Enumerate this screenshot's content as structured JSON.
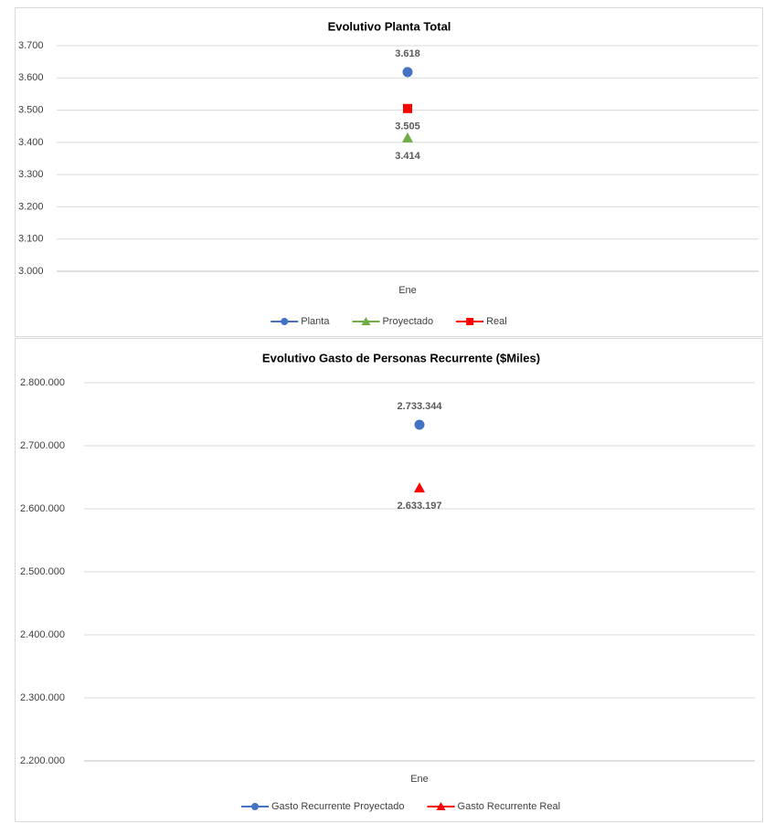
{
  "chart_data": [
    {
      "type": "line",
      "title": "Evolutivo Planta Total",
      "categories": [
        "Ene"
      ],
      "ylim": [
        3000,
        3700
      ],
      "yticks": [
        {
          "value": 3000,
          "label": "3.000"
        },
        {
          "value": 3100,
          "label": "3.100"
        },
        {
          "value": 3200,
          "label": "3.200"
        },
        {
          "value": 3300,
          "label": "3.300"
        },
        {
          "value": 3400,
          "label": "3.400"
        },
        {
          "value": 3500,
          "label": "3.500"
        },
        {
          "value": 3600,
          "label": "3.600"
        },
        {
          "value": 3700,
          "label": "3.700"
        }
      ],
      "grid": true,
      "legend": "bottom",
      "series": [
        {
          "name": "Planta",
          "color": "#4472c4",
          "marker": "circle",
          "label_position": "above",
          "values": [
            3618
          ],
          "value_labels": [
            "3.618"
          ]
        },
        {
          "name": "Proyectado",
          "color": "#70ad47",
          "marker": "triangle",
          "label_position": "below",
          "values": [
            3414
          ],
          "value_labels": [
            "3.414"
          ]
        },
        {
          "name": "Real",
          "color": "#ff0000",
          "marker": "square",
          "label_position": "below",
          "values": [
            3505
          ],
          "value_labels": [
            "3.505"
          ]
        }
      ]
    },
    {
      "type": "line",
      "title": "Evolutivo Gasto de Personas Recurrente ($Miles)",
      "categories": [
        "Ene"
      ],
      "ylim": [
        2200000,
        2800000
      ],
      "yticks": [
        {
          "value": 2200000,
          "label": "2.200.000"
        },
        {
          "value": 2300000,
          "label": "2.300.000"
        },
        {
          "value": 2400000,
          "label": "2.400.000"
        },
        {
          "value": 2500000,
          "label": "2.500.000"
        },
        {
          "value": 2600000,
          "label": "2.600.000"
        },
        {
          "value": 2700000,
          "label": "2.700.000"
        },
        {
          "value": 2800000,
          "label": "2.800.000"
        }
      ],
      "grid": true,
      "legend": "bottom",
      "series": [
        {
          "name": "Gasto Recurrente Proyectado",
          "color": "#4472c4",
          "marker": "circle",
          "label_position": "above",
          "values": [
            2733344
          ],
          "value_labels": [
            "2.733.344"
          ]
        },
        {
          "name": "Gasto Recurrente Real",
          "color": "#ff0000",
          "marker": "triangle",
          "label_position": "below",
          "values": [
            2633197
          ],
          "value_labels": [
            "2.633.197"
          ]
        }
      ]
    }
  ]
}
